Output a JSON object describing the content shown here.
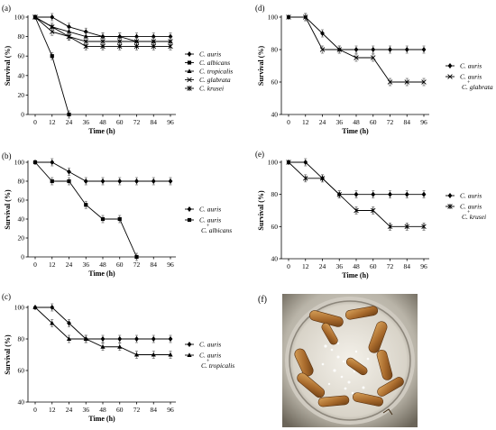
{
  "panels": [
    {
      "id": "a",
      "label": "(a)",
      "ylabel": "Survival (%)",
      "xlabel": "Time (h)",
      "chart_data": {
        "type": "line",
        "x": [
          0,
          12,
          24,
          36,
          48,
          60,
          72,
          84,
          96
        ],
        "ylim": [
          0,
          100
        ],
        "yticks": [
          0,
          20,
          40,
          60,
          80,
          100
        ],
        "series": [
          {
            "name": "C. auris",
            "marker": "diamond",
            "values": [
              100,
              100,
              90,
              85,
              80,
              80,
              80,
              80,
              80
            ]
          },
          {
            "name": "C. albicans",
            "marker": "square",
            "values": [
              100,
              60,
              0,
              null,
              null,
              null,
              null,
              null,
              null
            ]
          },
          {
            "name": "C. tropicalis",
            "marker": "triangle",
            "values": [
              100,
              90,
              85,
              80,
              80,
              80,
              75,
              75,
              75
            ]
          },
          {
            "name": "C. glabrata",
            "marker": "x",
            "values": [
              100,
              85,
              80,
              75,
              75,
              75,
              75,
              75,
              75
            ]
          },
          {
            "name": "C. krusei",
            "marker": "star",
            "values": [
              100,
              90,
              80,
              70,
              70,
              70,
              70,
              70,
              70
            ]
          }
        ]
      }
    },
    {
      "id": "b",
      "label": "(b)",
      "ylabel": "Survival (%)",
      "xlabel": "Time (h)",
      "chart_data": {
        "type": "line",
        "x": [
          0,
          12,
          24,
          36,
          48,
          60,
          72,
          84,
          96
        ],
        "ylim": [
          0,
          100
        ],
        "yticks": [
          0,
          20,
          40,
          60,
          80,
          100
        ],
        "series": [
          {
            "name": "C. auris",
            "marker": "diamond",
            "values": [
              100,
              100,
              90,
              80,
              80,
              80,
              80,
              80,
              80
            ]
          },
          {
            "name": "C. auris + C. albicans",
            "marker": "square",
            "values": [
              100,
              80,
              80,
              55,
              40,
              40,
              0,
              null,
              null
            ]
          }
        ]
      }
    },
    {
      "id": "c",
      "label": "(c)",
      "ylabel": "Survival (%)",
      "xlabel": "Time (h)",
      "chart_data": {
        "type": "line",
        "x": [
          0,
          12,
          24,
          36,
          48,
          60,
          72,
          84,
          96
        ],
        "ylim": [
          40,
          100
        ],
        "yticks": [
          40,
          60,
          80,
          100
        ],
        "series": [
          {
            "name": "C. auris",
            "marker": "diamond",
            "values": [
              100,
              100,
              90,
              80,
              80,
              80,
              80,
              80,
              80
            ]
          },
          {
            "name": "C. auris + C. tropicalis",
            "marker": "triangle",
            "values": [
              100,
              90,
              80,
              80,
              75,
              75,
              70,
              70,
              70
            ]
          }
        ]
      }
    },
    {
      "id": "d",
      "label": "(d)",
      "ylabel": "Survival (%)",
      "xlabel": "Time (h)",
      "chart_data": {
        "type": "line",
        "x": [
          0,
          12,
          24,
          36,
          48,
          60,
          72,
          84,
          96
        ],
        "ylim": [
          40,
          100
        ],
        "yticks": [
          40,
          60,
          80,
          100
        ],
        "series": [
          {
            "name": "C. auris",
            "marker": "diamond",
            "values": [
              100,
              100,
              90,
              80,
              80,
              80,
              80,
              80,
              80
            ]
          },
          {
            "name": "C. auris + C. glabrata",
            "marker": "x",
            "values": [
              100,
              100,
              80,
              80,
              75,
              75,
              60,
              60,
              60
            ]
          }
        ]
      }
    },
    {
      "id": "e",
      "label": "(e)",
      "ylabel": "Survival (%)",
      "xlabel": "Time (h)",
      "chart_data": {
        "type": "line",
        "x": [
          0,
          12,
          24,
          36,
          48,
          60,
          72,
          84,
          96
        ],
        "ylim": [
          40,
          100
        ],
        "yticks": [
          40,
          60,
          80,
          100
        ],
        "series": [
          {
            "name": "C. auris",
            "marker": "diamond",
            "values": [
              100,
              100,
              90,
              80,
              80,
              80,
              80,
              80,
              80
            ]
          },
          {
            "name": "C. auris + C. krusei",
            "marker": "star",
            "values": [
              100,
              90,
              90,
              80,
              70,
              70,
              60,
              60,
              60
            ]
          }
        ]
      }
    }
  ],
  "photo": {
    "label": "(f)"
  }
}
